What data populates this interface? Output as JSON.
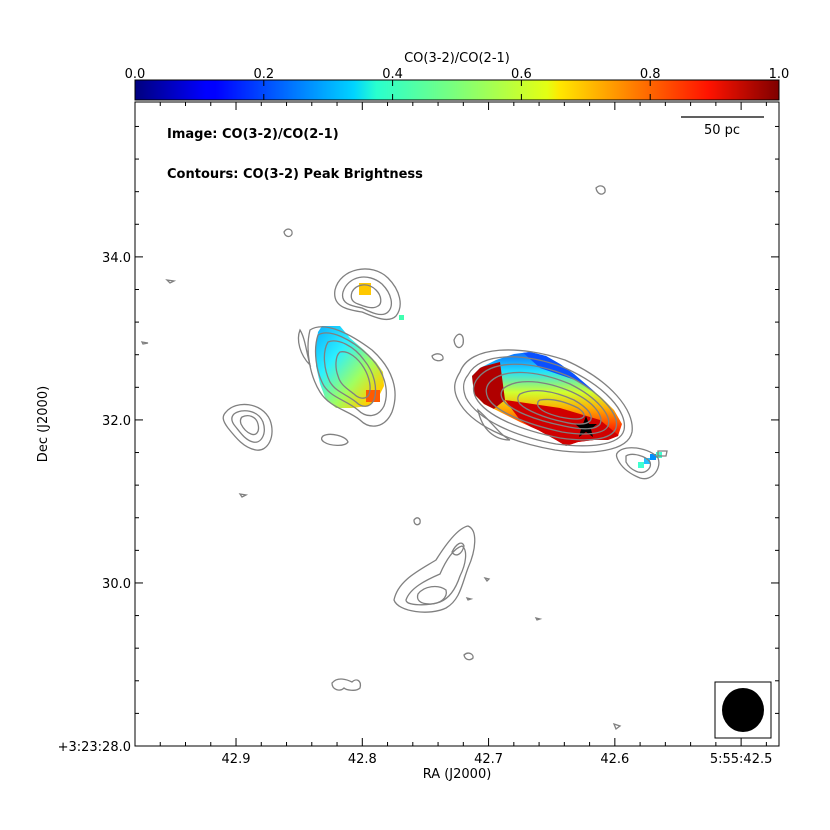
{
  "chart_data": {
    "type": "heatmap",
    "title": "",
    "xlabel": "RA (J2000)",
    "ylabel": "Dec (J2000)",
    "x_ticks": [
      "42.9",
      "42.8",
      "42.7",
      "42.6",
      "5:55:42.5"
    ],
    "x_tick_values": [
      42.9,
      42.8,
      42.7,
      42.6,
      42.5
    ],
    "y_ticks": [
      "+3:23:28.0",
      "30.0",
      "32.0",
      "34.0"
    ],
    "y_tick_values": [
      28.0,
      30.0,
      32.0,
      34.0
    ],
    "xlim": [
      42.98,
      42.47
    ],
    "ylim": [
      28.0,
      35.9
    ],
    "colorbar": {
      "label": "CO(3-2)/CO(2-1)",
      "ticks": [
        "0.0",
        "0.2",
        "0.4",
        "0.6",
        "0.8",
        "1.0"
      ],
      "range": [
        0.0,
        1.0
      ],
      "colormap": "jet"
    },
    "annotations": {
      "image_label": "Image: CO(3-2)/CO(2-1)",
      "contour_label": "Contours: CO(3-2) Peak Brightness",
      "scalebar_label": "50 pc"
    },
    "regions": [
      {
        "ra": 42.797,
        "dec": 33.68,
        "ratio": 0.72
      },
      {
        "ra": 42.832,
        "dec": 32.75,
        "ratio": 0.28
      },
      {
        "ra": 42.815,
        "dec": 32.55,
        "ratio": 0.45
      },
      {
        "ra": 42.8,
        "dec": 32.35,
        "ratio": 0.85
      },
      {
        "ra": 42.688,
        "dec": 32.45,
        "ratio": 0.97
      },
      {
        "ra": 42.66,
        "dec": 32.65,
        "ratio": 0.55
      },
      {
        "ra": 42.635,
        "dec": 32.45,
        "ratio": 0.25
      },
      {
        "ra": 42.65,
        "dec": 32.25,
        "ratio": 0.8
      },
      {
        "ra": 42.61,
        "dec": 32.0,
        "ratio": 0.95
      },
      {
        "ra": 42.565,
        "dec": 31.6,
        "ratio": 0.3
      }
    ]
  }
}
